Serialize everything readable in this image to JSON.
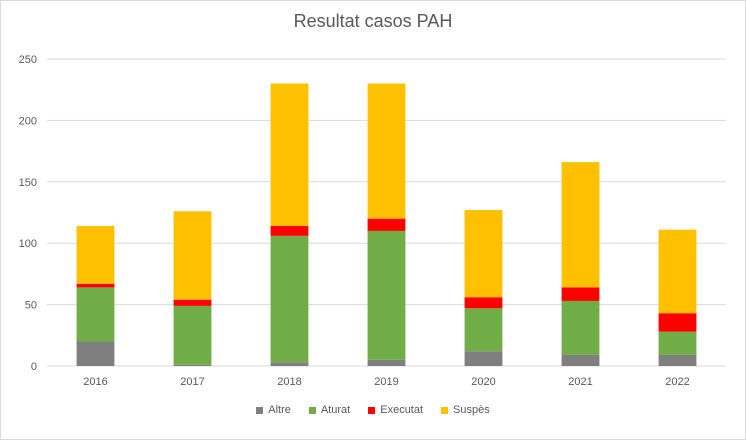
{
  "chart_data": {
    "type": "bar",
    "stacked": true,
    "title": "Resultat casos PAH",
    "xlabel": "",
    "ylabel": "",
    "categories": [
      "2016",
      "2017",
      "2018",
      "2019",
      "2020",
      "2021",
      "2022"
    ],
    "series": [
      {
        "name": "Altre",
        "color": "#7f7f7f",
        "values": [
          20,
          1,
          3,
          5,
          12,
          9,
          9
        ]
      },
      {
        "name": "Aturat",
        "color": "#70ad47",
        "values": [
          44,
          48,
          103,
          105,
          35,
          44,
          19
        ]
      },
      {
        "name": "Executat",
        "color": "#ff0000",
        "values": [
          3,
          5,
          8,
          10,
          9,
          11,
          15
        ]
      },
      {
        "name": "Suspès",
        "color": "#ffc000",
        "values": [
          47,
          72,
          116,
          110,
          71,
          102,
          68
        ]
      }
    ],
    "ylim": [
      0,
      250
    ],
    "yticks": [
      0,
      50,
      100,
      150,
      200,
      250
    ],
    "grid": true,
    "legend_position": "bottom",
    "gridline_color": "#d9d9d9",
    "axis_label_color": "#595959"
  }
}
